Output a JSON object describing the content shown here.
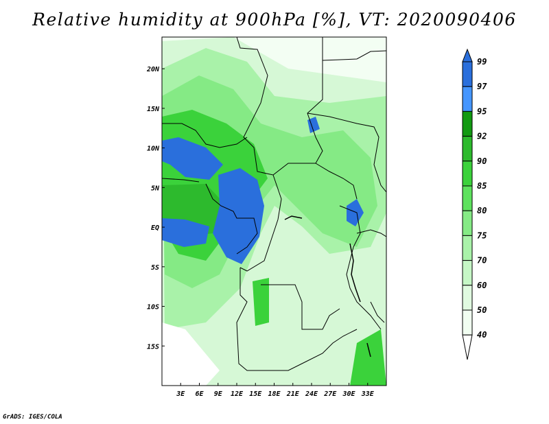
{
  "title": "Relative humidity at 900hPa [%], VT: 2020090406",
  "footer": "GrADS: IGES/COLA",
  "map": {
    "lon_range": [
      0,
      36
    ],
    "lat_range": [
      -20,
      24
    ],
    "x_tick_labels": [
      "3E",
      "6E",
      "9E",
      "12E",
      "15E",
      "18E",
      "21E",
      "24E",
      "27E",
      "30E",
      "33E"
    ],
    "y_tick_labels": [
      "20N",
      "15N",
      "10N",
      "5N",
      "EQ",
      "5S",
      "10S",
      "15S"
    ]
  },
  "colorbar": {
    "levels": [
      "99",
      "97",
      "95",
      "92",
      "90",
      "85",
      "80",
      "75",
      "70",
      "60",
      "50",
      "40"
    ],
    "colors": [
      "#2a6fdc",
      "#2a6fdc",
      "#4596ff",
      "#129a12",
      "#2dba2d",
      "#3bd23b",
      "#5ee25e",
      "#85ea85",
      "#a9f2a9",
      "#c6f7c6",
      "#e0fae0",
      "#f1fef1",
      "#ffffff"
    ]
  }
}
